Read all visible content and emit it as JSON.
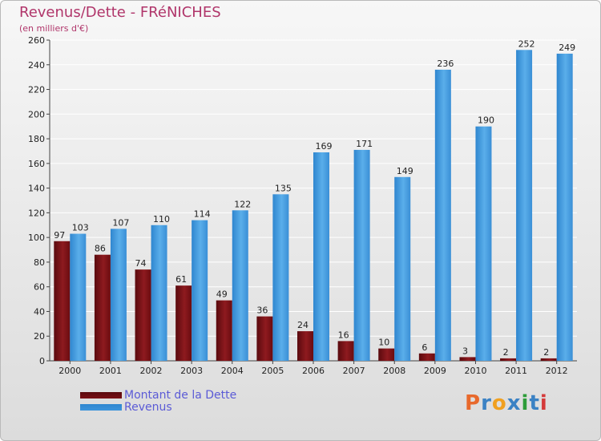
{
  "chart_data": {
    "type": "bar",
    "title": "Revenus/Dette - FRéNICHES",
    "subtitle": "(en milliers d'€)",
    "categories": [
      "2000",
      "2001",
      "2002",
      "2003",
      "2004",
      "2005",
      "2006",
      "2007",
      "2008",
      "2009",
      "2010",
      "2011",
      "2012"
    ],
    "series": [
      {
        "name": "Montant de la Dette",
        "color": "#7a0f14",
        "values": [
          97,
          86,
          74,
          61,
          49,
          36,
          24,
          16,
          10,
          6,
          3,
          2,
          2
        ]
      },
      {
        "name": "Revenus",
        "color": "#3d95dc",
        "values": [
          103,
          107,
          110,
          114,
          122,
          135,
          169,
          171,
          149,
          236,
          190,
          252,
          249
        ]
      }
    ],
    "yticks": [
      0,
      20,
      40,
      60,
      80,
      100,
      120,
      140,
      160,
      180,
      200,
      220,
      240,
      260
    ],
    "ylim": [
      0,
      260
    ],
    "grid": true,
    "legend_position": "bottom-left",
    "xlabel": "",
    "ylabel": ""
  },
  "logo": {
    "text": "Proxiti",
    "letters": [
      "P",
      "r",
      "o",
      "x",
      "i",
      "t",
      "i"
    ],
    "colors": [
      "#e8692c",
      "#3b82c4",
      "#f0a020",
      "#3b82c4",
      "#2e9d3a",
      "#3b82c4",
      "#d43a3a"
    ]
  }
}
